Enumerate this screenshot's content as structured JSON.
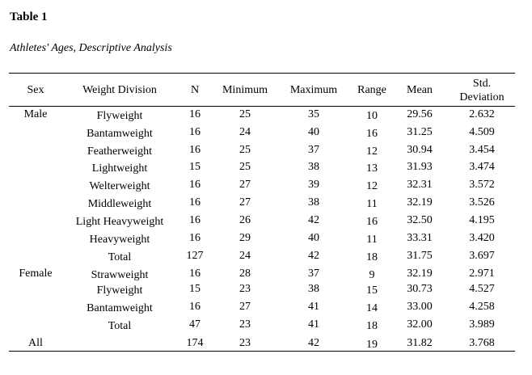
{
  "table_number": "Table 1",
  "caption": "Athletes' Ages, Descriptive Analysis",
  "headers": {
    "sex": "Sex",
    "division": "Weight Division",
    "n": "N",
    "min": "Minimum",
    "max": "Maximum",
    "range": "Range",
    "mean": "Mean",
    "sd_line1": "Std.",
    "sd_line2": "Deviation"
  },
  "rows": [
    {
      "sex": "Male",
      "division": "Flyweight",
      "n": "16",
      "min": "25",
      "max": "35",
      "range": "10",
      "mean": "29.56",
      "sd": "2.632"
    },
    {
      "sex": "",
      "division": "Bantamweight",
      "n": "16",
      "min": "24",
      "max": "40",
      "range": "16",
      "mean": "31.25",
      "sd": "4.509"
    },
    {
      "sex": "",
      "division": "Featherweight",
      "n": "16",
      "min": "25",
      "max": "37",
      "range": "12",
      "mean": "30.94",
      "sd": "3.454"
    },
    {
      "sex": "",
      "division": "Lightweight",
      "n": "15",
      "min": "25",
      "max": "38",
      "range": "13",
      "mean": "31.93",
      "sd": "3.474"
    },
    {
      "sex": "",
      "division": "Welterweight",
      "n": "16",
      "min": "27",
      "max": "39",
      "range": "12",
      "mean": "32.31",
      "sd": "3.572"
    },
    {
      "sex": "",
      "division": "Middleweight",
      "n": "16",
      "min": "27",
      "max": "38",
      "range": "11",
      "mean": "32.19",
      "sd": "3.526"
    },
    {
      "sex": "",
      "division": "Light Heavyweight",
      "n": "16",
      "min": "26",
      "max": "42",
      "range": "16",
      "mean": "32.50",
      "sd": "4.195"
    },
    {
      "sex": "",
      "division": "Heavyweight",
      "n": "16",
      "min": "29",
      "max": "40",
      "range": "11",
      "mean": "33.31",
      "sd": "3.420"
    },
    {
      "sex": "",
      "division": "Total",
      "n": "127",
      "min": "24",
      "max": "42",
      "range": "18",
      "mean": "31.75",
      "sd": "3.697"
    },
    {
      "sex": "Female",
      "division": "Strawweight",
      "n": "16",
      "min": "28",
      "max": "37",
      "range": "9",
      "mean": "32.19",
      "sd": "2.971"
    },
    {
      "sex": "",
      "division": "Flyweight",
      "n": "15",
      "min": "23",
      "max": "38",
      "range": "15",
      "mean": "30.73",
      "sd": "4.527"
    },
    {
      "sex": "",
      "division": "Bantamweight",
      "n": "16",
      "min": "27",
      "max": "41",
      "range": "14",
      "mean": "33.00",
      "sd": "4.258"
    },
    {
      "sex": "",
      "division": "Total",
      "n": "47",
      "min": "23",
      "max": "41",
      "range": "18",
      "mean": "32.00",
      "sd": "3.989"
    },
    {
      "sex": "All",
      "division": "",
      "n": "174",
      "min": "23",
      "max": "42",
      "range": "19",
      "mean": "31.82",
      "sd": "3.768"
    }
  ]
}
